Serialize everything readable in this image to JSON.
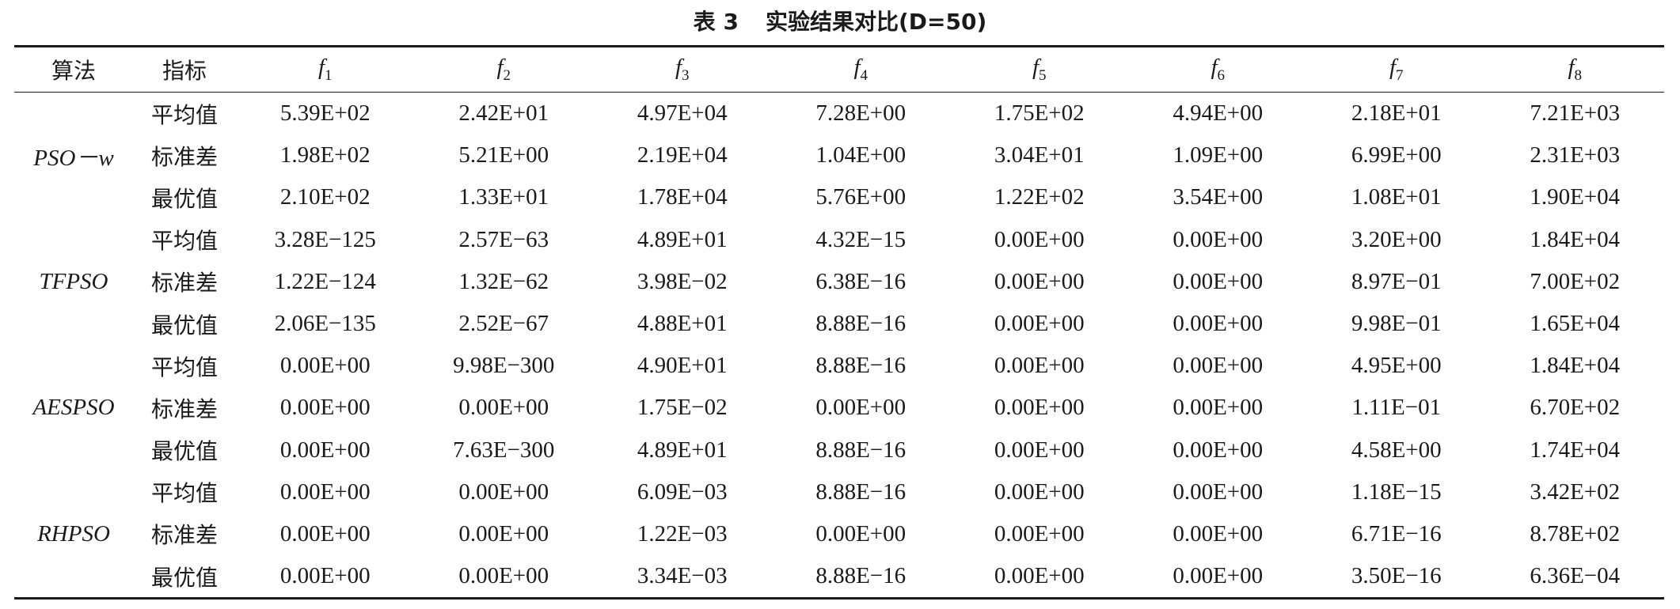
{
  "caption": {
    "number": "表 3",
    "title": "实验结果对比(D=50)"
  },
  "header": {
    "algo_label": "算法",
    "metric_label": "指标",
    "functions": [
      {
        "base": "f",
        "sub": "1"
      },
      {
        "base": "f",
        "sub": "2"
      },
      {
        "base": "f",
        "sub": "3"
      },
      {
        "base": "f",
        "sub": "4"
      },
      {
        "base": "f",
        "sub": "5"
      },
      {
        "base": "f",
        "sub": "6"
      },
      {
        "base": "f",
        "sub": "7"
      },
      {
        "base": "f",
        "sub": "8"
      }
    ]
  },
  "groups": [
    {
      "algorithm": "PSO－w",
      "rows": [
        {
          "metric": "平均值",
          "values": [
            "5.39E+02",
            "2.42E+01",
            "4.97E+04",
            "7.28E+00",
            "1.75E+02",
            "4.94E+00",
            "2.18E+01",
            "7.21E+03"
          ]
        },
        {
          "metric": "标准差",
          "values": [
            "1.98E+02",
            "5.21E+00",
            "2.19E+04",
            "1.04E+00",
            "3.04E+01",
            "1.09E+00",
            "6.99E+00",
            "2.31E+03"
          ]
        },
        {
          "metric": "最优值",
          "values": [
            "2.10E+02",
            "1.33E+01",
            "1.78E+04",
            "5.76E+00",
            "1.22E+02",
            "3.54E+00",
            "1.08E+01",
            "1.90E+04"
          ]
        }
      ]
    },
    {
      "algorithm": "TFPSO",
      "rows": [
        {
          "metric": "平均值",
          "values": [
            "3.28E−125",
            "2.57E−63",
            "4.89E+01",
            "4.32E−15",
            "0.00E+00",
            "0.00E+00",
            "3.20E+00",
            "1.84E+04"
          ]
        },
        {
          "metric": "标准差",
          "values": [
            "1.22E−124",
            "1.32E−62",
            "3.98E−02",
            "6.38E−16",
            "0.00E+00",
            "0.00E+00",
            "8.97E−01",
            "7.00E+02"
          ]
        },
        {
          "metric": "最优值",
          "values": [
            "2.06E−135",
            "2.52E−67",
            "4.88E+01",
            "8.88E−16",
            "0.00E+00",
            "0.00E+00",
            "9.98E−01",
            "1.65E+04"
          ]
        }
      ]
    },
    {
      "algorithm": "AESPSO",
      "rows": [
        {
          "metric": "平均值",
          "values": [
            "0.00E+00",
            "9.98E−300",
            "4.90E+01",
            "8.88E−16",
            "0.00E+00",
            "0.00E+00",
            "4.95E+00",
            "1.84E+04"
          ]
        },
        {
          "metric": "标准差",
          "values": [
            "0.00E+00",
            "0.00E+00",
            "1.75E−02",
            "0.00E+00",
            "0.00E+00",
            "0.00E+00",
            "1.11E−01",
            "6.70E+02"
          ]
        },
        {
          "metric": "最优值",
          "values": [
            "0.00E+00",
            "7.63E−300",
            "4.89E+01",
            "8.88E−16",
            "0.00E+00",
            "0.00E+00",
            "4.58E+00",
            "1.74E+04"
          ]
        }
      ]
    },
    {
      "algorithm": "RHPSO",
      "rows": [
        {
          "metric": "平均值",
          "values": [
            "0.00E+00",
            "0.00E+00",
            "6.09E−03",
            "8.88E−16",
            "0.00E+00",
            "0.00E+00",
            "1.18E−15",
            "3.42E+02"
          ]
        },
        {
          "metric": "标准差",
          "values": [
            "0.00E+00",
            "0.00E+00",
            "1.22E−03",
            "0.00E+00",
            "0.00E+00",
            "0.00E+00",
            "6.71E−16",
            "8.78E+02"
          ]
        },
        {
          "metric": "最优值",
          "values": [
            "0.00E+00",
            "0.00E+00",
            "3.34E−03",
            "8.88E−16",
            "0.00E+00",
            "0.00E+00",
            "3.50E−16",
            "6.36E−04"
          ]
        }
      ]
    }
  ]
}
